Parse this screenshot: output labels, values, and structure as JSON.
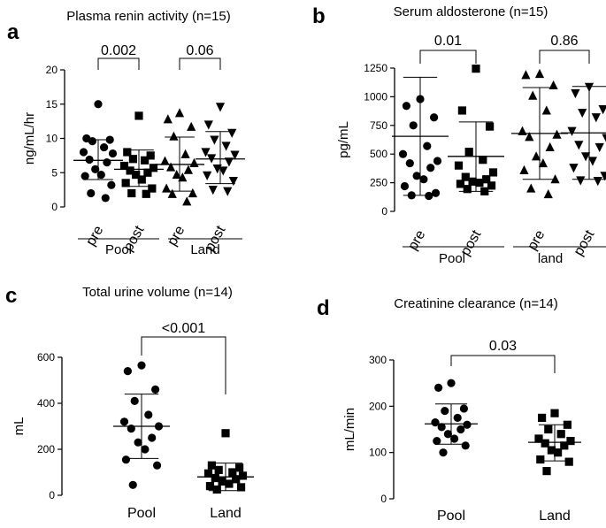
{
  "chart_data": [
    {
      "panel": "a",
      "type": "scatter",
      "title": "Plasma renin activity (n=15)",
      "ylabel": "ng/mL/hr",
      "ylim": [
        0,
        20
      ],
      "yticks": [
        "0",
        "5",
        "10",
        "15",
        "20"
      ],
      "categories": [
        "pre",
        "post",
        "pre",
        "post"
      ],
      "groups": [
        "Pool",
        "Land"
      ],
      "series": [
        {
          "name": "Pool pre",
          "marker": "circle",
          "mean": 6.8,
          "sd_low": 4.0,
          "sd_high": 9.8,
          "values": [
            15.0,
            10.0,
            9.8,
            9.6,
            8.7,
            8.0,
            7.8,
            6.9,
            6.5,
            5.5,
            4.7,
            4.5,
            3.2,
            2.0,
            1.3
          ]
        },
        {
          "name": "Pool post",
          "marker": "square",
          "mean": 5.5,
          "sd_low": 3.0,
          "sd_high": 8.3,
          "values": [
            13.3,
            8.0,
            7.5,
            7.0,
            6.8,
            6.0,
            5.7,
            5.3,
            5.0,
            4.7,
            4.0,
            3.5,
            2.7,
            2.0,
            1.9
          ]
        },
        {
          "name": "Land pre",
          "marker": "triangle-up",
          "mean": 6.2,
          "sd_low": 2.3,
          "sd_high": 10.2,
          "values": [
            13.7,
            12.8,
            11.7,
            10.3,
            7.7,
            6.7,
            6.4,
            5.8,
            5.4,
            4.7,
            4.3,
            2.7,
            2.0,
            1.9,
            0.8
          ]
        },
        {
          "name": "Land post",
          "marker": "triangle-down",
          "mean": 7.0,
          "sd_low": 3.4,
          "sd_high": 11.0,
          "values": [
            14.6,
            12.0,
            10.8,
            9.8,
            8.9,
            8.0,
            7.6,
            7.1,
            6.6,
            5.6,
            5.3,
            4.6,
            3.8,
            2.5,
            2.3
          ]
        }
      ],
      "comparisons": [
        {
          "label": "0.002",
          "from": 0,
          "to": 1
        },
        {
          "label": "0.06",
          "from": 2,
          "to": 3
        }
      ]
    },
    {
      "panel": "b",
      "type": "scatter",
      "title": "Serum aldosterone (n=15)",
      "ylabel": "pg/mL",
      "ylim": [
        0,
        1250
      ],
      "yticks": [
        "0",
        "250",
        "500",
        "750",
        "1000",
        "1250"
      ],
      "categories": [
        "pre",
        "post",
        "pre",
        "post"
      ],
      "groups": [
        "Pool",
        "land"
      ],
      "series": [
        {
          "name": "Pool pre",
          "marker": "circle",
          "mean": 655,
          "sd_low": 140,
          "sd_high": 1170,
          "values": [
            980,
            920,
            820,
            750,
            570,
            500,
            440,
            420,
            380,
            310,
            280,
            220,
            160,
            140,
            135
          ]
        },
        {
          "name": "Pool post",
          "marker": "square",
          "mean": 480,
          "sd_low": 175,
          "sd_high": 780,
          "values": [
            1245,
            880,
            740,
            520,
            450,
            400,
            340,
            300,
            280,
            260,
            250,
            240,
            225,
            195,
            175
          ]
        },
        {
          "name": "land pre",
          "marker": "triangle-up",
          "mean": 680,
          "sd_low": 280,
          "sd_high": 1080,
          "values": [
            1200,
            1190,
            1100,
            1010,
            880,
            700,
            670,
            650,
            560,
            480,
            420,
            360,
            280,
            200,
            150
          ]
        },
        {
          "name": "land post",
          "marker": "triangle-down",
          "mean": 685,
          "sd_low": 280,
          "sd_high": 1090,
          "values": [
            1085,
            1030,
            890,
            860,
            820,
            700,
            640,
            580,
            560,
            480,
            440,
            380,
            310,
            270,
            265
          ]
        }
      ],
      "comparisons": [
        {
          "label": "0.01",
          "from": 0,
          "to": 1
        },
        {
          "label": "0.86",
          "from": 2,
          "to": 3
        }
      ]
    },
    {
      "panel": "c",
      "type": "scatter",
      "title": "Total urine volume (n=14)",
      "ylabel": "mL",
      "ylim": [
        0,
        600
      ],
      "yticks": [
        "0",
        "200",
        "400",
        "600"
      ],
      "categories": [
        "Pool",
        "Land"
      ],
      "groups": [],
      "series": [
        {
          "name": "Pool",
          "marker": "circle",
          "mean": 300,
          "sd_low": 160,
          "sd_high": 440,
          "values": [
            565,
            540,
            460,
            410,
            350,
            320,
            300,
            290,
            250,
            230,
            200,
            155,
            130,
            45
          ]
        },
        {
          "name": "Land",
          "marker": "square",
          "mean": 80,
          "sd_low": 20,
          "sd_high": 140,
          "values": [
            270,
            130,
            120,
            110,
            100,
            95,
            85,
            75,
            70,
            60,
            50,
            40,
            35,
            25
          ]
        }
      ],
      "comparisons": [
        {
          "label": "<0.001",
          "from": 0,
          "to": 1
        }
      ]
    },
    {
      "panel": "d",
      "type": "scatter",
      "title": "Creatinine clearance (n=14)",
      "ylabel": "mL/min",
      "ylim": [
        0,
        300
      ],
      "yticks": [
        "0",
        "100",
        "200",
        "300"
      ],
      "categories": [
        "Pool",
        "Land"
      ],
      "groups": [],
      "series": [
        {
          "name": "Pool",
          "marker": "circle",
          "mean": 162,
          "sd_low": 118,
          "sd_high": 205,
          "values": [
            250,
            240,
            195,
            190,
            175,
            165,
            160,
            155,
            150,
            140,
            130,
            125,
            115,
            100
          ]
        },
        {
          "name": "Land",
          "marker": "square",
          "mean": 122,
          "sd_low": 82,
          "sd_high": 160,
          "values": [
            185,
            175,
            160,
            150,
            140,
            130,
            125,
            120,
            115,
            105,
            100,
            85,
            80,
            60
          ]
        }
      ],
      "comparisons": [
        {
          "label": "0.03",
          "from": 0,
          "to": 1
        }
      ]
    }
  ]
}
